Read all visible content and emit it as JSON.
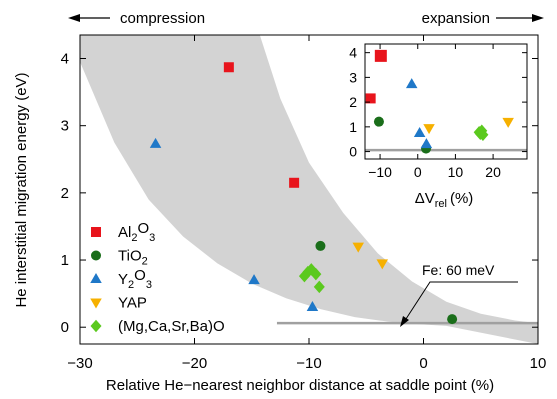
{
  "chart_data": [
    {
      "type": "scatter",
      "xlabel": "Relative He−nearest neighbor distance at saddle point (%)",
      "ylabel": "He interstitial migration energy (eV)",
      "xlim": [
        -30,
        10
      ],
      "ylim": [
        -0.25,
        4.35
      ],
      "x_ticks": [
        -30,
        -20,
        -10,
        0,
        10
      ],
      "x_tick_labels": [
        "−30",
        "−20",
        "−10",
        "0",
        "10"
      ],
      "y_ticks": [
        0,
        1,
        2,
        3,
        4
      ],
      "y_tick_labels": [
        "0",
        "1",
        "2",
        "3",
        "4"
      ],
      "grid": false,
      "legend_position": "left",
      "top_labels": {
        "left": "compression",
        "right": "expansion"
      },
      "reference_line": {
        "label": "Fe: 60 meV",
        "y": 0.06,
        "x_from": -12.8,
        "x_to": 10,
        "color": "#a0a0a0"
      },
      "band": {
        "color": "#d3d3d3",
        "upper": [
          [
            -14.3,
            4.35
          ],
          [
            -12.5,
            3.4
          ],
          [
            -10,
            2.45
          ],
          [
            -7,
            1.7
          ],
          [
            -4,
            1.1
          ],
          [
            -1,
            0.68
          ],
          [
            2,
            0.38
          ],
          [
            5,
            0.2
          ],
          [
            8,
            0.1
          ],
          [
            10,
            0.06
          ]
        ],
        "lower": [
          [
            -30,
            3.95
          ],
          [
            -27,
            2.75
          ],
          [
            -24,
            1.9
          ],
          [
            -21,
            1.35
          ],
          [
            -18,
            0.95
          ],
          [
            -15,
            0.65
          ],
          [
            -12,
            0.43
          ],
          [
            -9,
            0.27
          ],
          [
            -6,
            0.15
          ],
          [
            -3,
            0.08
          ],
          [
            0,
            0.04
          ],
          [
            2,
            0.02
          ]
        ]
      },
      "series": [
        {
          "name": "Al2O3",
          "label_main": "Al",
          "label_sub1": "2",
          "label_mid": "O",
          "label_sub2": "3",
          "marker": "square",
          "color": "#e8141c",
          "points": [
            [
              -17,
              3.87
            ],
            [
              -11.3,
              2.15
            ]
          ]
        },
        {
          "name": "TiO2",
          "label_main": "TiO",
          "label_sub1": "2",
          "label_mid": "",
          "label_sub2": "",
          "marker": "circle",
          "color": "#1a6e1a",
          "points": [
            [
              -9,
              1.21
            ],
            [
              2.5,
              0.12
            ]
          ]
        },
        {
          "name": "Y2O3",
          "label_main": "Y",
          "label_sub1": "2",
          "label_mid": "O",
          "label_sub2": "3",
          "marker": "triangle-up",
          "color": "#1f78c8",
          "points": [
            [
              -23.4,
              2.73
            ],
            [
              -14.8,
              0.7
            ],
            [
              -9.7,
              0.3
            ]
          ]
        },
        {
          "name": "YAP",
          "label_main": "YAP",
          "label_sub1": "",
          "label_mid": "",
          "label_sub2": "",
          "marker": "triangle-down",
          "color": "#f6b000",
          "points": [
            [
              -5.7,
              1.2
            ],
            [
              -3.6,
              0.95
            ]
          ]
        },
        {
          "name": "(Mg,Ca,Sr,Ba)O",
          "label_main": "(Mg,Ca,Sr,Ba)O",
          "label_sub1": "",
          "label_mid": "",
          "label_sub2": "",
          "marker": "diamond",
          "color": "#5bc91e",
          "points": [
            [
              -10.4,
              0.76
            ],
            [
              -10.1,
              0.82
            ],
            [
              -9.8,
              0.86
            ],
            [
              -9.4,
              0.79
            ],
            [
              -9.1,
              0.6
            ]
          ]
        }
      ]
    },
    {
      "type": "scatter",
      "role": "inset",
      "xlabel_main": "ΔV",
      "xlabel_sub": "rel",
      "xlabel_unit": "(%)",
      "xlim": [
        -14,
        29
      ],
      "ylim": [
        -0.3,
        4.35
      ],
      "x_ticks": [
        -10,
        0,
        10,
        20
      ],
      "x_tick_labels": [
        "−10",
        "0",
        "10",
        "20"
      ],
      "y_ticks": [
        0,
        1,
        2,
        3,
        4
      ],
      "y_tick_labels": [
        "0",
        "1",
        "2",
        "3",
        "4"
      ],
      "reference_line": {
        "y": 0.06,
        "color": "#a0a0a0"
      },
      "series": [
        {
          "name": "Al2O3",
          "marker": "square",
          "color": "#e8141c",
          "points": [
            [
              -9.8,
              3.87
            ],
            [
              -12.5,
              2.15
            ]
          ]
        },
        {
          "name": "TiO2",
          "marker": "circle",
          "color": "#1a6e1a",
          "points": [
            [
              -10.3,
              1.21
            ],
            [
              2.2,
              0.12
            ]
          ]
        },
        {
          "name": "Y2O3",
          "marker": "triangle-up",
          "color": "#1f78c8",
          "points": [
            [
              -1.6,
              2.73
            ],
            [
              0.5,
              0.75
            ],
            [
              2.3,
              0.3
            ]
          ]
        },
        {
          "name": "YAP",
          "marker": "triangle-down",
          "color": "#f6b000",
          "points": [
            [
              3,
              0.95
            ],
            [
              24,
              1.2
            ]
          ]
        },
        {
          "name": "(Mg,Ca,Sr,Ba)O",
          "marker": "diamond",
          "color": "#5bc91e",
          "points": [
            [
              16.3,
              0.78
            ],
            [
              17,
              0.84
            ],
            [
              17.3,
              0.68
            ],
            [
              16.6,
              0.72
            ]
          ]
        }
      ]
    }
  ]
}
